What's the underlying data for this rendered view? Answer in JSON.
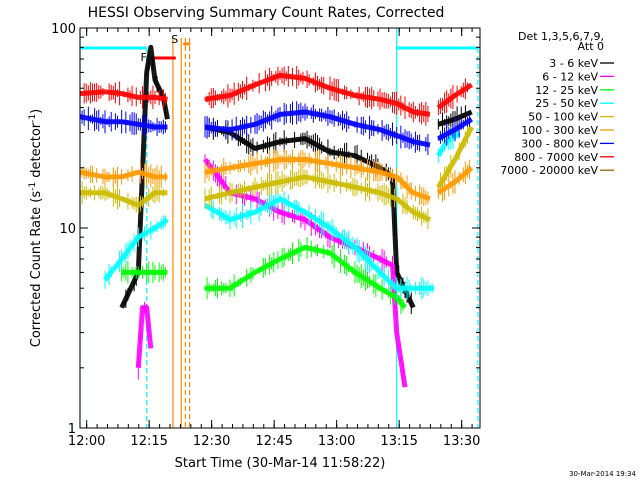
{
  "chart_data": {
    "type": "line",
    "title": "HESSI Observing Summary Count Rates, Corrected",
    "xlabel": "Start Time (30-Mar-14 11:58:22)",
    "ylabel_main": "Corrected Count Rate (s",
    "ylabel_sup1": "-1",
    "ylabel_mid": " detector",
    "ylabel_sup2": "-1",
    "ylabel_end": ")",
    "ylog": true,
    "ylim": [
      1,
      100
    ],
    "xlim": [
      0,
      96
    ],
    "x_unit": "minutes after 11:58:22",
    "x_ticks": [
      {
        "label": "12:00",
        "x": 1.6
      },
      {
        "label": "12:15",
        "x": 16.6
      },
      {
        "label": "12:30",
        "x": 31.6
      },
      {
        "label": "12:45",
        "x": 46.6
      },
      {
        "label": "13:00",
        "x": 61.6
      },
      {
        "label": "13:15",
        "x": 76.6
      },
      {
        "label": "13:30",
        "x": 91.6
      }
    ],
    "y_ticks": [
      {
        "label": "1",
        "v": 1
      },
      {
        "label": "10",
        "v": 10
      },
      {
        "label": "100",
        "v": 100
      }
    ],
    "legend_header1": "Det 1,3,5,6,7,9,",
    "legend_header2": "Att 0",
    "series": [
      {
        "name": "3 - 6 keV",
        "color": "#000000",
        "segments": [
          [
            [
              10,
              4
            ],
            [
              14,
              6
            ],
            [
              16,
              60
            ],
            [
              17,
              80
            ],
            [
              18,
              55
            ],
            [
              20,
              45
            ],
            [
              21,
              35
            ]
          ],
          [
            [
              30,
              32
            ],
            [
              36,
              30
            ],
            [
              42,
              25
            ],
            [
              48,
              27
            ],
            [
              54,
              28
            ],
            [
              60,
              24
            ],
            [
              66,
              23
            ],
            [
              72,
              20
            ],
            [
              75,
              18
            ],
            [
              76,
              6
            ],
            [
              80,
              4
            ]
          ],
          [
            [
              86,
              33
            ],
            [
              90,
              35
            ],
            [
              94,
              38
            ]
          ]
        ]
      },
      {
        "name": "6 - 12 keV",
        "color": "#ff00ff",
        "segments": [
          [
            [
              14,
              2
            ],
            [
              15,
              4
            ],
            [
              16,
              4
            ],
            [
              17,
              2.5
            ]
          ],
          [
            [
              30,
              22
            ],
            [
              36,
              15
            ],
            [
              42,
              14
            ],
            [
              48,
              12
            ],
            [
              54,
              11
            ],
            [
              60,
              9
            ],
            [
              66,
              8
            ],
            [
              72,
              7
            ],
            [
              75,
              6.5
            ],
            [
              76,
              3
            ],
            [
              78,
              1.6
            ]
          ]
        ]
      },
      {
        "name": "12 - 25 keV",
        "color": "#00ff00",
        "segments": [
          [
            [
              10,
              6
            ],
            [
              14,
              6
            ],
            [
              18,
              6
            ],
            [
              21,
              6
            ]
          ],
          [
            [
              30,
              5
            ],
            [
              36,
              5
            ],
            [
              42,
              6
            ],
            [
              48,
              7
            ],
            [
              54,
              8
            ],
            [
              60,
              7.5
            ],
            [
              66,
              6
            ],
            [
              72,
              5
            ],
            [
              76,
              4.5
            ],
            [
              78,
              4
            ]
          ]
        ]
      },
      {
        "name": "25 - 50 keV",
        "color": "#00ffff",
        "segments": [
          [
            [
              6,
              5.5
            ],
            [
              10,
              7
            ],
            [
              14,
              9
            ],
            [
              18,
              10
            ],
            [
              21,
              11
            ]
          ],
          [
            [
              30,
              13
            ],
            [
              36,
              11
            ],
            [
              42,
              12
            ],
            [
              48,
              14
            ],
            [
              54,
              12
            ],
            [
              60,
              10
            ],
            [
              66,
              8
            ],
            [
              72,
              6
            ],
            [
              76,
              5
            ],
            [
              80,
              5
            ],
            [
              85,
              5
            ]
          ],
          [
            [
              86,
              23
            ],
            [
              88,
              27
            ],
            [
              91,
              30
            ]
          ]
        ]
      },
      {
        "name": "50 - 100 keV",
        "color": "#ccbb00",
        "segments": [
          [
            [
              0,
              15
            ],
            [
              6,
              15
            ],
            [
              10,
              14
            ],
            [
              14,
              13
            ],
            [
              18,
              15
            ],
            [
              21,
              15
            ]
          ],
          [
            [
              30,
              14
            ],
            [
              36,
              15
            ],
            [
              42,
              16
            ],
            [
              48,
              17
            ],
            [
              54,
              18
            ],
            [
              60,
              17
            ],
            [
              66,
              16
            ],
            [
              72,
              15
            ],
            [
              76,
              14
            ],
            [
              80,
              12
            ],
            [
              84,
              11
            ]
          ],
          [
            [
              86,
              16
            ],
            [
              90,
              22
            ],
            [
              94,
              32
            ]
          ]
        ]
      },
      {
        "name": "100 - 300 keV",
        "color": "#ff9900",
        "segments": [
          [
            [
              0,
              19
            ],
            [
              6,
              18
            ],
            [
              10,
              18
            ],
            [
              14,
              19
            ],
            [
              18,
              18
            ],
            [
              21,
              18
            ]
          ],
          [
            [
              30,
              19
            ],
            [
              36,
              20
            ],
            [
              42,
              21
            ],
            [
              48,
              22
            ],
            [
              54,
              22
            ],
            [
              60,
              21
            ],
            [
              66,
              20
            ],
            [
              72,
              19
            ],
            [
              76,
              18
            ],
            [
              80,
              15
            ],
            [
              84,
              14
            ]
          ],
          [
            [
              86,
              15
            ],
            [
              90,
              17
            ],
            [
              94,
              20
            ]
          ]
        ]
      },
      {
        "name": "300 - 800 keV",
        "color": "#0000ff",
        "segments": [
          [
            [
              0,
              36
            ],
            [
              6,
              34
            ],
            [
              10,
              34
            ],
            [
              14,
              33
            ],
            [
              18,
              32
            ],
            [
              21,
              32
            ]
          ],
          [
            [
              30,
              32
            ],
            [
              36,
              31
            ],
            [
              42,
              33
            ],
            [
              48,
              37
            ],
            [
              54,
              38
            ],
            [
              60,
              36
            ],
            [
              66,
              33
            ],
            [
              72,
              31
            ],
            [
              76,
              29
            ],
            [
              80,
              27
            ],
            [
              84,
              26
            ]
          ],
          [
            [
              86,
              28
            ],
            [
              90,
              31
            ],
            [
              94,
              35
            ]
          ]
        ]
      },
      {
        "name": "800 - 7000 keV",
        "color": "#ff0000",
        "segments": [
          [
            [
              0,
              47
            ],
            [
              6,
              48
            ],
            [
              10,
              47
            ],
            [
              14,
              45
            ],
            [
              18,
              45
            ],
            [
              21,
              44
            ]
          ],
          [
            [
              30,
              44
            ],
            [
              36,
              46
            ],
            [
              42,
              52
            ],
            [
              48,
              58
            ],
            [
              54,
              56
            ],
            [
              60,
              50
            ],
            [
              66,
              46
            ],
            [
              72,
              44
            ],
            [
              76,
              42
            ],
            [
              80,
              38
            ],
            [
              84,
              37
            ]
          ],
          [
            [
              86,
              40
            ],
            [
              90,
              46
            ],
            [
              94,
              52
            ]
          ]
        ]
      },
      {
        "name": "7000 - 20000 keV",
        "color": "#996600",
        "segments": []
      }
    ],
    "annotations": {
      "flag_F": "F",
      "flag_S": "S",
      "bar_cyan_left": [
        0,
        16
      ],
      "bar_cyan_right": [
        76,
        95.5
      ],
      "bar_red_F": [
        17,
        23
      ],
      "mark_S": 25.5,
      "vlines_cyan_solid": [
        0,
        76
      ],
      "vlines_cyan_dashed": [
        16,
        95.5
      ],
      "vlines_orange_solid": [
        22.3,
        24.3
      ],
      "vlines_orange_dashed": [
        25.3,
        26.3
      ]
    }
  },
  "footer": {
    "timestamp": "30-Mar-2014 19:34"
  }
}
